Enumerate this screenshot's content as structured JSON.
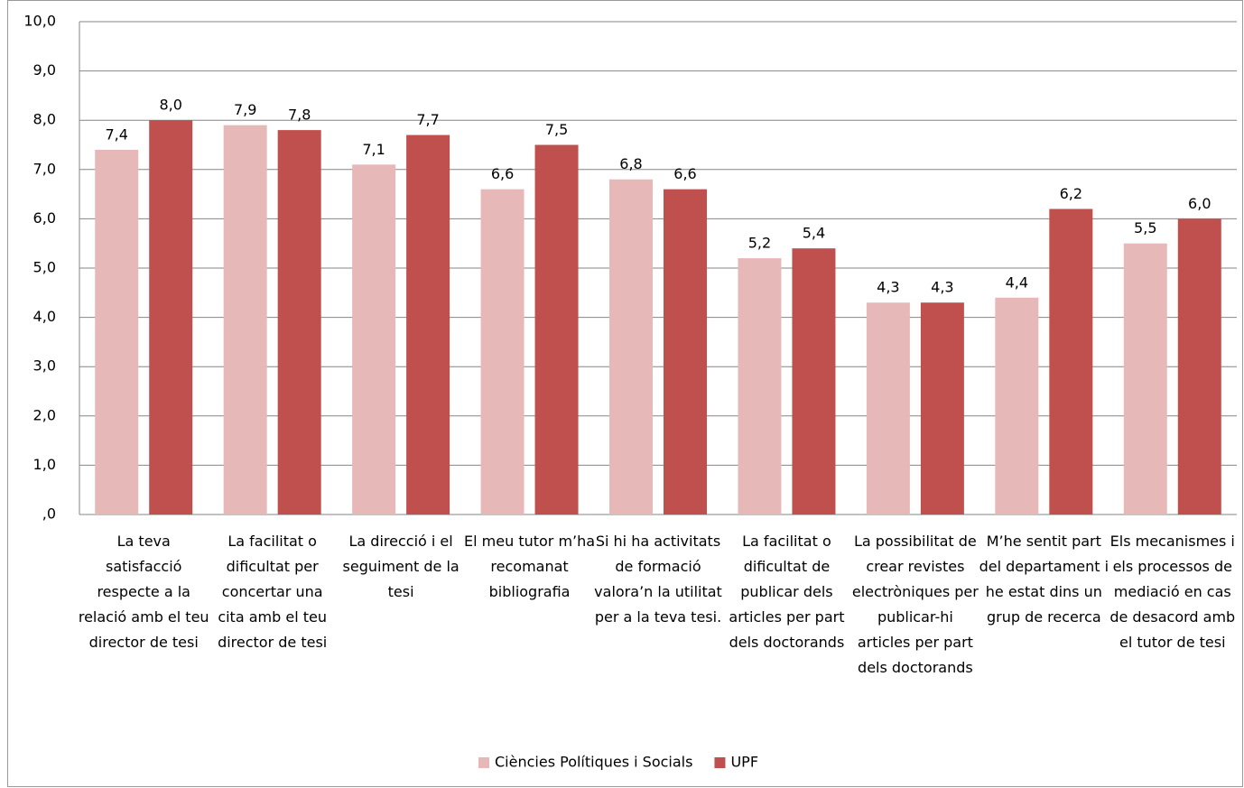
{
  "chart_data": {
    "type": "bar",
    "categories": [
      "La teva satisfacció respecte a la relació amb el teu director de tesi",
      "La facilitat o dificultat per concertar una cita amb el teu director de tesi",
      "La direcció i el seguiment de la tesi",
      "El meu tutor m’ha recomanat bibliografia",
      "Si hi ha activitats de formació valora’n la utilitat per a la teva tesi.",
      "La facilitat o dificultat de publicar dels articles per part dels doctorands",
      "La possibilitat de crear revistes electròniques per publicar-hi articles per part dels doctorands",
      "M’he sentit part del departament i he estat dins un grup de recerca",
      "Els mecanismes i els processos de mediació en cas de desacord amb el tutor de tesi"
    ],
    "series": [
      {
        "name": "Ciències Polítiques i Socials",
        "color": "#e6b9b8",
        "values": [
          7.4,
          7.9,
          7.1,
          6.6,
          6.8,
          5.2,
          4.3,
          4.4,
          5.5
        ],
        "value_labels": [
          "7,4",
          "7,9",
          "7,1",
          "6,6",
          "6,8",
          "5,2",
          "4,3",
          "4,4",
          "5,5"
        ]
      },
      {
        "name": "UPF",
        "color": "#c0504d",
        "values": [
          8.0,
          7.8,
          7.7,
          7.5,
          6.6,
          5.4,
          4.3,
          6.2,
          6.0
        ],
        "value_labels": [
          "8,0",
          "7,8",
          "7,7",
          "7,5",
          "6,6",
          "5,4",
          "4,3",
          "6,2",
          "6,0"
        ]
      }
    ],
    "ylim": [
      0,
      10
    ],
    "yticks": [
      {
        "value": 0,
        "label": ",0"
      },
      {
        "value": 1,
        "label": "1,0"
      },
      {
        "value": 2,
        "label": "2,0"
      },
      {
        "value": 3,
        "label": "3,0"
      },
      {
        "value": 4,
        "label": "4,0"
      },
      {
        "value": 5,
        "label": "5,0"
      },
      {
        "value": 6,
        "label": "6,0"
      },
      {
        "value": 7,
        "label": "7,0"
      },
      {
        "value": 8,
        "label": "8,0"
      },
      {
        "value": 9,
        "label": "9,0"
      },
      {
        "value": 10,
        "label": "10,0"
      }
    ],
    "grid": true,
    "legend": "bottom"
  }
}
